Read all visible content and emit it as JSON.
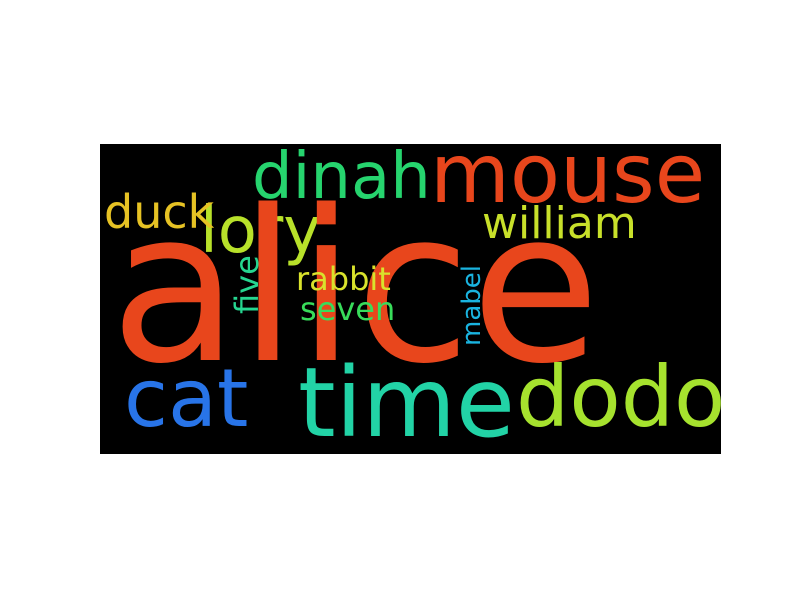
{
  "wordcloud": {
    "background": "#000000",
    "words": [
      {
        "text": "alice",
        "color": "#e8461c",
        "orientation": "horizontal"
      },
      {
        "text": "mouse",
        "color": "#e8461c",
        "orientation": "horizontal"
      },
      {
        "text": "time",
        "color": "#22d3a6",
        "orientation": "horizontal"
      },
      {
        "text": "dodo",
        "color": "#a6e22e",
        "orientation": "horizontal"
      },
      {
        "text": "cat",
        "color": "#2874e8",
        "orientation": "horizontal"
      },
      {
        "text": "dinah",
        "color": "#26d46e",
        "orientation": "horizontal"
      },
      {
        "text": "lory",
        "color": "#b8e12a",
        "orientation": "horizontal"
      },
      {
        "text": "william",
        "color": "#c8e02a",
        "orientation": "horizontal"
      },
      {
        "text": "duck",
        "color": "#e6c224",
        "orientation": "horizontal"
      },
      {
        "text": "rabbit",
        "color": "#d9e22c",
        "orientation": "horizontal"
      },
      {
        "text": "seven",
        "color": "#38dc5a",
        "orientation": "horizontal"
      },
      {
        "text": "five",
        "color": "#26d690",
        "orientation": "vertical"
      },
      {
        "text": "mabel",
        "color": "#1ab4e0",
        "orientation": "vertical"
      }
    ]
  }
}
